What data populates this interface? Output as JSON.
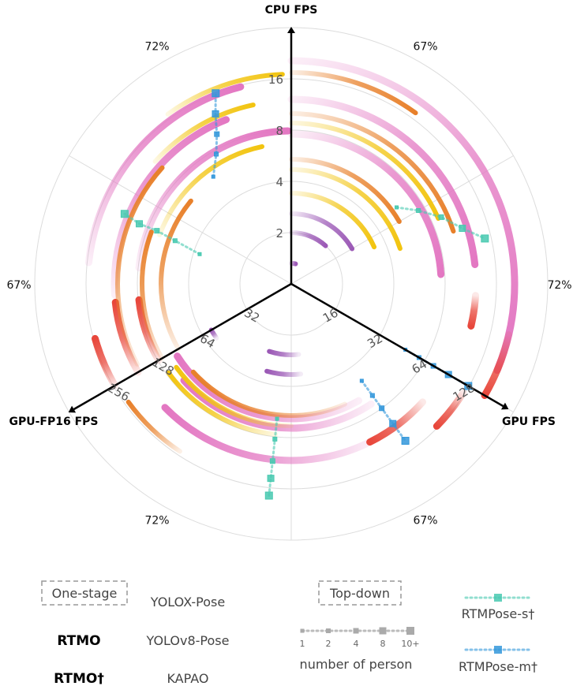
{
  "chart_data": {
    "type": "radar",
    "axes": [
      {
        "name": "CPU FPS",
        "ticks": [
          "2",
          "4",
          "8",
          "16"
        ]
      },
      {
        "name": "GPU FPS",
        "ticks": [
          "16",
          "32",
          "64",
          "128"
        ]
      },
      {
        "name": "GPU-FP16 FPS",
        "ticks": [
          "32",
          "64",
          "128",
          "256"
        ]
      }
    ],
    "accuracy_labels": [
      "67%",
      "72%",
      "67%",
      "72%",
      "67%",
      "72%"
    ],
    "legend": {
      "one_stage_title": "One-stage",
      "top_down_title": "Top-down",
      "series": [
        {
          "name": "RTMO",
          "color": "#e377c2",
          "bold": true
        },
        {
          "name": "RTMO†",
          "color": "#e8473b",
          "bold": true
        },
        {
          "name": "YOLOX-Pose",
          "color": "#e8802a",
          "bold": false
        },
        {
          "name": "YOLOv8-Pose",
          "color": "#f2c40f",
          "bold": false
        },
        {
          "name": "KAPAO",
          "color": "#9b59b6",
          "bold": false
        },
        {
          "name": "RTMPose-s†",
          "color": "#48c9b0",
          "bold": false
        },
        {
          "name": "RTMPose-m†",
          "color": "#3498db",
          "bold": false
        }
      ],
      "person_ticks": [
        "1",
        "2",
        "4",
        "8",
        "10+"
      ],
      "person_label": "number of person"
    },
    "arcs": [
      {
        "series": "RTMO",
        "sector": "cpu",
        "r": 283,
        "s": 0.0,
        "e": 0.94
      },
      {
        "series": "RTMO",
        "sector": "cpu",
        "r": 234,
        "s": 0.0,
        "e": 0.7
      },
      {
        "series": "RTMO",
        "sector": "cpu",
        "r": 190,
        "s": 0.0,
        "e": 0.72
      },
      {
        "series": "RTMO",
        "sector": "gpu",
        "r": 224,
        "s": 0.27,
        "e": 0.88
      },
      {
        "series": "RTMO",
        "sector": "gpu",
        "r": 183,
        "s": 0.22,
        "e": 0.9
      },
      {
        "series": "RTMO",
        "sector": "gpu",
        "r": 171,
        "s": 0.25,
        "e": 0.98
      },
      {
        "series": "RTMO",
        "sector": "fp16",
        "r": 258,
        "s": 0.3,
        "e": 0.88
      },
      {
        "series": "RTMO",
        "sector": "fp16",
        "r": 224,
        "s": 0.22,
        "e": 0.82
      },
      {
        "series": "RTMO",
        "sector": "fp16",
        "r": 194,
        "s": 0.3,
        "e": 0.99
      },
      {
        "series": "RTMO†",
        "sector": "cpu",
        "r": 283,
        "s": 0.86,
        "e": 1.0
      },
      {
        "series": "RTMO†",
        "sector": "cpu",
        "r": 234,
        "s": 0.78,
        "e": 0.86
      },
      {
        "series": "RTMO†",
        "sector": "gpu",
        "r": 258,
        "s": 0.02,
        "e": 0.12
      },
      {
        "series": "RTMO†",
        "sector": "gpu",
        "r": 224,
        "s": 0.1,
        "e": 0.28
      },
      {
        "series": "RTMO†",
        "sector": "fp16",
        "r": 258,
        "s": 0.0,
        "e": 0.12
      },
      {
        "series": "RTMO†",
        "sector": "fp16",
        "r": 224,
        "s": 0.0,
        "e": 0.2
      },
      {
        "series": "RTMO†",
        "sector": "fp16",
        "r": 194,
        "s": 0.0,
        "e": 0.2
      },
      {
        "series": "YOLOX-Pose",
        "sector": "cpu",
        "r": 268,
        "s": 0.0,
        "e": 0.3
      },
      {
        "series": "YOLOX-Pose",
        "sector": "cpu",
        "r": 216,
        "s": 0.0,
        "e": 0.6
      },
      {
        "series": "YOLOX-Pose",
        "sector": "cpu",
        "r": 158,
        "s": 0.0,
        "e": 0.5
      },
      {
        "series": "YOLOX-Pose",
        "sector": "gpu",
        "r": 255,
        "s": 0.78,
        "e": 0.95
      },
      {
        "series": "YOLOX-Pose",
        "sector": "gpu",
        "r": 167,
        "s": 0.3,
        "e": 0.9
      },
      {
        "series": "YOLOX-Pose",
        "sector": "fp16",
        "r": 220,
        "s": 0.02,
        "e": 0.6
      },
      {
        "series": "YOLOX-Pose",
        "sector": "fp16",
        "r": 189,
        "s": 0.0,
        "e": 0.42
      },
      {
        "series": "YOLOX-Pose",
        "sector": "fp16",
        "r": 165,
        "s": 0.0,
        "e": 0.58
      },
      {
        "series": "YOLOv8-Pose",
        "sector": "cpu",
        "r": 204,
        "s": 0.0,
        "e": 0.55
      },
      {
        "series": "YOLOv8-Pose",
        "sector": "cpu",
        "r": 145,
        "s": 0.0,
        "e": 0.6
      },
      {
        "series": "YOLOv8-Pose",
        "sector": "cpu",
        "r": 115,
        "s": 0.0,
        "e": 0.55
      },
      {
        "series": "YOLOv8-Pose",
        "sector": "gpu",
        "r": 192,
        "s": 0.55,
        "e": 0.95
      },
      {
        "series": "YOLOv8-Pose",
        "sector": "gpu",
        "r": 180,
        "s": 0.5,
        "e": 0.95
      },
      {
        "series": "YOLOv8-Pose",
        "sector": "fp16",
        "r": 266,
        "s": 0.7,
        "e": 0.98
      },
      {
        "series": "YOLOv8-Pose",
        "sector": "fp16",
        "r": 232,
        "s": 0.6,
        "e": 0.9
      },
      {
        "series": "YOLOv8-Pose",
        "sector": "fp16",
        "r": 178,
        "s": 0.42,
        "e": 0.9
      },
      {
        "series": "KAPAO",
        "sector": "cpu",
        "r": 89,
        "s": 0.0,
        "e": 0.5
      },
      {
        "series": "KAPAO",
        "sector": "cpu",
        "r": 26,
        "s": 0.0,
        "e": 0.1
      },
      {
        "series": "KAPAO",
        "sector": "cpu",
        "r": 65,
        "s": 0.0,
        "e": 0.35
      },
      {
        "series": "KAPAO",
        "sector": "gpu",
        "r": 117,
        "s": 0.95,
        "e": 1.0
      },
      {
        "series": "KAPAO",
        "sector": "gpu",
        "r": 90,
        "s": 0.45,
        "e": 0.65
      },
      {
        "series": "KAPAO",
        "sector": "gpu",
        "r": 115,
        "s": 0.45,
        "e": 0.63
      }
    ],
    "dotted_lines": [
      {
        "series": "RTMPose-s†",
        "sector": "cpu",
        "r": [
          165,
          186,
          208,
          228,
          252
        ],
        "f": [
          0.45,
          0.5,
          0.55,
          0.6,
          0.64
        ]
      },
      {
        "series": "RTMPose-m†",
        "sector": "cpu",
        "r": [
          167,
          187,
          208,
          230,
          259
        ],
        "f": [
          1.0,
          1.0,
          1.0,
          1.0,
          1.0
        ]
      },
      {
        "series": "RTMPose-s†",
        "sector": "gpu",
        "r": [
          172,
          198,
          226,
          248,
          270
        ],
        "f": [
          0.55,
          0.55,
          0.55,
          0.55,
          0.55
        ]
      },
      {
        "series": "RTMPose-m†",
        "sector": "gpu",
        "r": [
          152,
          175,
          195,
          219,
          246
        ],
        "f": [
          0.2,
          0.2,
          0.2,
          0.2,
          0.2
        ]
      },
      {
        "series": "RTMPose-s†",
        "sector": "fp16",
        "r": [
          122,
          157,
          183,
          207,
          229
        ],
        "f": [
          0.4,
          0.42,
          0.43,
          0.43,
          0.44
        ]
      },
      {
        "series": "RTMPose-m†",
        "sector": "fp16",
        "r": [
          168,
          190,
          212,
          236,
          260
        ],
        "f": [
          0.7,
          0.75,
          0.78,
          0.8,
          0.82
        ]
      }
    ]
  }
}
